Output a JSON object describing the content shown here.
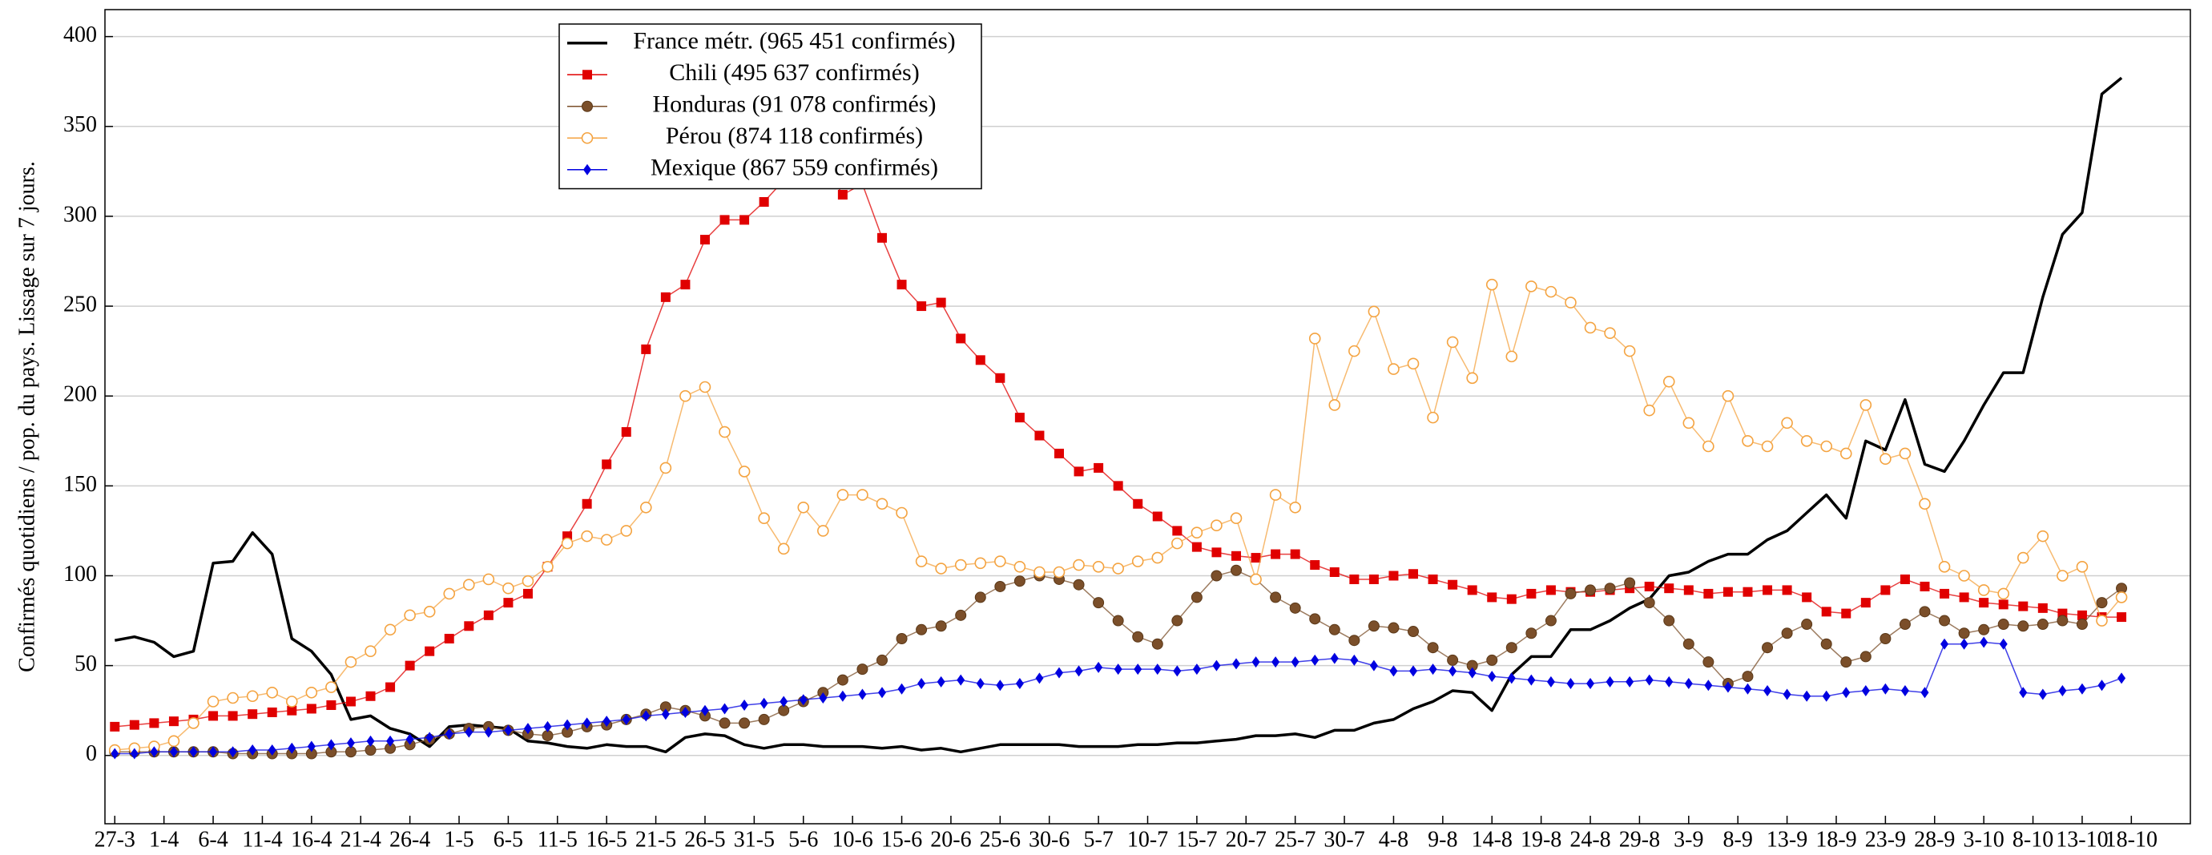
{
  "chart_data": {
    "type": "line",
    "ylabel": "Confirmés quotidiens / pop. du pays. Lissage sur 7 jours.",
    "grid": true,
    "legend": "upper left",
    "xlim": [
      -1,
      211
    ],
    "ylim": [
      -38,
      415
    ],
    "yticks": [
      0,
      50,
      100,
      150,
      200,
      250,
      300,
      350,
      400
    ],
    "xticks": [
      {
        "value": 0,
        "label": "27-3"
      },
      {
        "value": 5,
        "label": "1-4"
      },
      {
        "value": 10,
        "label": "6-4"
      },
      {
        "value": 15,
        "label": "11-4"
      },
      {
        "value": 20,
        "label": "16-4"
      },
      {
        "value": 25,
        "label": "21-4"
      },
      {
        "value": 30,
        "label": "26-4"
      },
      {
        "value": 35,
        "label": "1-5"
      },
      {
        "value": 40,
        "label": "6-5"
      },
      {
        "value": 45,
        "label": "11-5"
      },
      {
        "value": 50,
        "label": "16-5"
      },
      {
        "value": 55,
        "label": "21-5"
      },
      {
        "value": 60,
        "label": "26-5"
      },
      {
        "value": 65,
        "label": "31-5"
      },
      {
        "value": 70,
        "label": "5-6"
      },
      {
        "value": 75,
        "label": "10-6"
      },
      {
        "value": 80,
        "label": "15-6"
      },
      {
        "value": 85,
        "label": "20-6"
      },
      {
        "value": 90,
        "label": "25-6"
      },
      {
        "value": 95,
        "label": "30-6"
      },
      {
        "value": 100,
        "label": "5-7"
      },
      {
        "value": 105,
        "label": "10-7"
      },
      {
        "value": 110,
        "label": "15-7"
      },
      {
        "value": 115,
        "label": "20-7"
      },
      {
        "value": 120,
        "label": "25-7"
      },
      {
        "value": 125,
        "label": "30-7"
      },
      {
        "value": 130,
        "label": "4-8"
      },
      {
        "value": 135,
        "label": "9-8"
      },
      {
        "value": 140,
        "label": "14-8"
      },
      {
        "value": 145,
        "label": "19-8"
      },
      {
        "value": 150,
        "label": "24-8"
      },
      {
        "value": 155,
        "label": "29-8"
      },
      {
        "value": 160,
        "label": "3-9"
      },
      {
        "value": 165,
        "label": "8-9"
      },
      {
        "value": 170,
        "label": "13-9"
      },
      {
        "value": 175,
        "label": "18-9"
      },
      {
        "value": 180,
        "label": "23-9"
      },
      {
        "value": 185,
        "label": "28-9"
      },
      {
        "value": 190,
        "label": "3-10"
      },
      {
        "value": 195,
        "label": "8-10"
      },
      {
        "value": 200,
        "label": "13-10"
      },
      {
        "value": 205,
        "label": "18-10"
      }
    ],
    "x": [
      0,
      2,
      4,
      6,
      8,
      10,
      12,
      14,
      16,
      18,
      20,
      22,
      24,
      26,
      28,
      30,
      32,
      34,
      36,
      38,
      40,
      42,
      44,
      46,
      48,
      50,
      52,
      54,
      56,
      58,
      60,
      62,
      64,
      66,
      68,
      70,
      72,
      74,
      76,
      78,
      80,
      82,
      84,
      86,
      88,
      90,
      92,
      94,
      96,
      98,
      100,
      102,
      104,
      106,
      108,
      110,
      112,
      114,
      116,
      118,
      120,
      122,
      124,
      126,
      128,
      130,
      132,
      134,
      136,
      138,
      140,
      142,
      144,
      146,
      148,
      150,
      152,
      154,
      156,
      158,
      160,
      162,
      164,
      166,
      168,
      170,
      172,
      174,
      176,
      178,
      180,
      182,
      184,
      186,
      188,
      190,
      192,
      194,
      196,
      198,
      200,
      202,
      204
    ],
    "series": [
      {
        "name": "France métr. (965 451 confirmés)",
        "color": "#000000",
        "marker": "none",
        "values": [
          64,
          66,
          63,
          55,
          58,
          107,
          108,
          124,
          112,
          65,
          58,
          45,
          20,
          22,
          15,
          12,
          5,
          16,
          17,
          16,
          15,
          8,
          7,
          5,
          4,
          6,
          5,
          5,
          2,
          10,
          12,
          11,
          6,
          4,
          6,
          6,
          5,
          5,
          5,
          4,
          5,
          3,
          4,
          2,
          4,
          6,
          6,
          6,
          6,
          5,
          5,
          5,
          6,
          6,
          7,
          7,
          8,
          9,
          11,
          11,
          12,
          10,
          14,
          14,
          18,
          20,
          26,
          30,
          36,
          35,
          25,
          45,
          55,
          55,
          70,
          70,
          75,
          82,
          87,
          100,
          102,
          108,
          112,
          112,
          120,
          125,
          135,
          145,
          132,
          175,
          170,
          198,
          162,
          158,
          175,
          195,
          213,
          213,
          255,
          290,
          302,
          368,
          377
        ]
      },
      {
        "name": "Chili (495 637 confirmés)",
        "color": "#e00000",
        "marker": "square",
        "values": [
          16,
          17,
          18,
          19,
          20,
          22,
          22,
          23,
          24,
          25,
          26,
          28,
          30,
          33,
          38,
          50,
          58,
          65,
          72,
          78,
          85,
          90,
          105,
          122,
          140,
          162,
          180,
          226,
          255,
          262,
          287,
          298,
          298,
          308,
          320,
          335,
          330,
          312,
          318,
          288,
          262,
          250,
          252,
          232,
          220,
          210,
          188,
          178,
          168,
          158,
          160,
          150,
          140,
          133,
          125,
          116,
          113,
          111,
          110,
          112,
          112,
          106,
          102,
          98,
          98,
          100,
          101,
          98,
          95,
          92,
          88,
          87,
          90,
          92,
          91,
          91,
          92,
          93,
          94,
          93,
          92,
          90,
          91,
          91,
          92,
          92,
          88,
          80,
          79,
          85,
          92,
          98,
          94,
          90,
          88,
          85,
          84,
          83,
          82,
          79,
          78,
          77,
          77
        ]
      },
      {
        "name": "Honduras (91 078 confirmés)",
        "color": "#7b4f2a",
        "marker": "circle",
        "values": [
          2,
          2,
          2,
          2,
          2,
          2,
          1,
          1,
          1,
          1,
          1,
          2,
          2,
          3,
          4,
          6,
          9,
          12,
          15,
          16,
          14,
          12,
          11,
          13,
          16,
          17,
          20,
          23,
          27,
          25,
          22,
          18,
          18,
          20,
          25,
          30,
          35,
          42,
          48,
          53,
          65,
          70,
          72,
          78,
          88,
          94,
          97,
          100,
          98,
          95,
          85,
          75,
          66,
          62,
          75,
          88,
          100,
          103,
          98,
          88,
          82,
          76,
          70,
          64,
          72,
          71,
          69,
          60,
          53,
          50,
          53,
          60,
          68,
          75,
          90,
          92,
          93,
          96,
          85,
          75,
          62,
          52,
          40,
          44,
          60,
          68,
          73,
          62,
          52,
          55,
          65,
          73,
          80,
          75,
          68,
          70,
          73,
          72,
          73,
          75,
          73,
          85,
          93
        ]
      },
      {
        "name": "Pérou (874 118 confirmés)",
        "color": "#f4a340",
        "marker": "circle-open",
        "values": [
          3,
          4,
          5,
          8,
          18,
          30,
          32,
          33,
          35,
          30,
          35,
          38,
          52,
          58,
          70,
          78,
          80,
          90,
          95,
          98,
          93,
          97,
          105,
          118,
          122,
          120,
          125,
          138,
          160,
          200,
          205,
          180,
          158,
          132,
          115,
          138,
          125,
          145,
          145,
          140,
          135,
          108,
          104,
          106,
          107,
          108,
          105,
          102,
          102,
          106,
          105,
          104,
          108,
          110,
          118,
          124,
          128,
          132,
          98,
          145,
          138,
          232,
          195,
          225,
          247,
          215,
          218,
          188,
          230,
          210,
          262,
          222,
          261,
          258,
          252,
          238,
          235,
          225,
          192,
          208,
          185,
          172,
          200,
          175,
          172,
          185,
          175,
          172,
          168,
          195,
          165,
          168,
          140,
          105,
          100,
          92,
          90,
          110,
          122,
          100,
          105,
          75,
          88
        ]
      },
      {
        "name": "Mexique (867 559 confirmés)",
        "color": "#0000e0",
        "marker": "diamond",
        "values": [
          1,
          1,
          2,
          2,
          2,
          2,
          2,
          3,
          3,
          4,
          5,
          6,
          7,
          8,
          8,
          9,
          10,
          12,
          13,
          13,
          14,
          15,
          16,
          17,
          18,
          19,
          20,
          22,
          23,
          24,
          25,
          26,
          28,
          29,
          30,
          31,
          32,
          33,
          34,
          35,
          37,
          40,
          41,
          42,
          40,
          39,
          40,
          43,
          46,
          47,
          49,
          48,
          48,
          48,
          47,
          48,
          50,
          51,
          52,
          52,
          52,
          53,
          54,
          53,
          50,
          47,
          47,
          48,
          47,
          46,
          44,
          43,
          42,
          41,
          40,
          40,
          41,
          41,
          42,
          41,
          40,
          39,
          38,
          37,
          36,
          34,
          33,
          33,
          35,
          36,
          37,
          36,
          35,
          62,
          62,
          63,
          62,
          35,
          34,
          36,
          37,
          39,
          43
        ]
      }
    ]
  }
}
